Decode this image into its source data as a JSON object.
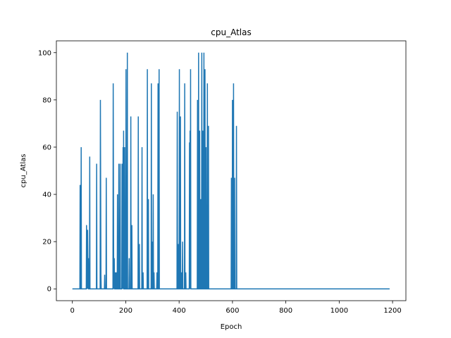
{
  "chart_data": {
    "type": "line",
    "title": "cpu_Atlas",
    "xlabel": "Epoch",
    "ylabel": "cpu_Atlas",
    "xlim": [
      -60,
      1250
    ],
    "ylim": [
      -5,
      105
    ],
    "xticks": [
      0,
      200,
      400,
      600,
      800,
      1000,
      1200
    ],
    "yticks": [
      0,
      20,
      40,
      60,
      80,
      100
    ],
    "grid": false,
    "legend": "none",
    "color": "#1f77b4",
    "series": [
      {
        "values_sparse": [
          [
            0,
            0
          ],
          [
            28,
            0
          ],
          [
            29,
            44
          ],
          [
            30,
            0
          ],
          [
            32,
            0
          ],
          [
            33,
            60
          ],
          [
            34,
            0
          ],
          [
            52,
            0
          ],
          [
            53,
            27
          ],
          [
            55,
            0
          ],
          [
            57,
            25
          ],
          [
            59,
            0
          ],
          [
            60,
            13
          ],
          [
            61,
            0
          ],
          [
            64,
            0
          ],
          [
            65,
            56
          ],
          [
            66,
            0
          ],
          [
            90,
            0
          ],
          [
            91,
            53
          ],
          [
            92,
            0
          ],
          [
            104,
            0
          ],
          [
            105,
            80
          ],
          [
            107,
            6
          ],
          [
            108,
            0
          ],
          [
            120,
            0
          ],
          [
            121,
            6
          ],
          [
            122,
            0
          ],
          [
            126,
            0
          ],
          [
            127,
            47
          ],
          [
            128,
            0
          ],
          [
            152,
            0
          ],
          [
            153,
            87
          ],
          [
            155,
            0
          ],
          [
            157,
            13
          ],
          [
            158,
            0
          ],
          [
            160,
            0
          ],
          [
            161,
            7
          ],
          [
            162,
            0
          ],
          [
            164,
            0
          ],
          [
            165,
            7
          ],
          [
            166,
            0
          ],
          [
            168,
            0
          ],
          [
            169,
            40
          ],
          [
            170,
            0
          ],
          [
            173,
            0
          ],
          [
            174,
            53
          ],
          [
            175,
            0
          ],
          [
            178,
            0
          ],
          [
            179,
            53
          ],
          [
            180,
            0
          ],
          [
            185,
            0
          ],
          [
            186,
            53
          ],
          [
            188,
            0
          ],
          [
            190,
            60
          ],
          [
            191,
            0
          ],
          [
            192,
            67
          ],
          [
            193,
            0
          ],
          [
            195,
            0
          ],
          [
            196,
            60
          ],
          [
            197,
            0
          ],
          [
            200,
            0
          ],
          [
            201,
            93
          ],
          [
            202,
            0
          ],
          [
            205,
            0
          ],
          [
            206,
            100
          ],
          [
            207,
            0
          ],
          [
            212,
            0
          ],
          [
            213,
            13
          ],
          [
            214,
            0
          ],
          [
            218,
            0
          ],
          [
            219,
            73
          ],
          [
            220,
            0
          ],
          [
            222,
            0
          ],
          [
            223,
            27
          ],
          [
            224,
            0
          ],
          [
            246,
            0
          ],
          [
            247,
            73
          ],
          [
            248,
            0
          ],
          [
            250,
            0
          ],
          [
            251,
            19
          ],
          [
            252,
            0
          ],
          [
            260,
            0
          ],
          [
            261,
            60
          ],
          [
            262,
            0
          ],
          [
            264,
            0
          ],
          [
            265,
            7
          ],
          [
            266,
            0
          ],
          [
            280,
            0
          ],
          [
            281,
            93
          ],
          [
            282,
            0
          ],
          [
            284,
            0
          ],
          [
            285,
            38
          ],
          [
            286,
            0
          ],
          [
            295,
            0
          ],
          [
            296,
            87
          ],
          [
            297,
            0
          ],
          [
            298,
            0
          ],
          [
            299,
            20
          ],
          [
            300,
            0
          ],
          [
            302,
            0
          ],
          [
            303,
            40
          ],
          [
            304,
            0
          ],
          [
            305,
            0
          ],
          [
            306,
            7
          ],
          [
            307,
            0
          ],
          [
            316,
            0
          ],
          [
            317,
            7
          ],
          [
            318,
            0
          ],
          [
            320,
            0
          ],
          [
            321,
            87
          ],
          [
            322,
            0
          ],
          [
            324,
            0
          ],
          [
            325,
            93
          ],
          [
            326,
            0
          ],
          [
            392,
            0
          ],
          [
            393,
            75
          ],
          [
            394,
            0
          ],
          [
            396,
            0
          ],
          [
            397,
            19
          ],
          [
            398,
            0
          ],
          [
            400,
            0
          ],
          [
            401,
            93
          ],
          [
            402,
            0
          ],
          [
            404,
            0
          ],
          [
            405,
            73
          ],
          [
            406,
            0
          ],
          [
            408,
            0
          ],
          [
            409,
            7
          ],
          [
            410,
            0
          ],
          [
            412,
            0
          ],
          [
            413,
            20
          ],
          [
            414,
            0
          ],
          [
            420,
            0
          ],
          [
            421,
            87
          ],
          [
            422,
            0
          ],
          [
            424,
            0
          ],
          [
            425,
            7
          ],
          [
            426,
            0
          ],
          [
            438,
            0
          ],
          [
            439,
            62
          ],
          [
            440,
            0
          ],
          [
            441,
            67
          ],
          [
            442,
            0
          ],
          [
            443,
            93
          ],
          [
            444,
            0
          ],
          [
            468,
            0
          ],
          [
            469,
            80
          ],
          [
            470,
            0
          ],
          [
            472,
            0
          ],
          [
            473,
            100
          ],
          [
            474,
            0
          ],
          [
            476,
            0
          ],
          [
            477,
            67
          ],
          [
            478,
            0
          ],
          [
            480,
            0
          ],
          [
            481,
            38
          ],
          [
            482,
            0
          ],
          [
            484,
            0
          ],
          [
            485,
            100
          ],
          [
            486,
            0
          ],
          [
            488,
            0
          ],
          [
            489,
            67
          ],
          [
            490,
            0
          ],
          [
            492,
            0
          ],
          [
            493,
            100
          ],
          [
            494,
            0
          ],
          [
            496,
            0
          ],
          [
            497,
            93
          ],
          [
            498,
            0
          ],
          [
            500,
            0
          ],
          [
            501,
            60
          ],
          [
            502,
            0
          ],
          [
            505,
            0
          ],
          [
            506,
            87
          ],
          [
            507,
            0
          ],
          [
            509,
            0
          ],
          [
            510,
            69
          ],
          [
            511,
            0
          ],
          [
            595,
            0
          ],
          [
            596,
            47
          ],
          [
            597,
            0
          ],
          [
            599,
            0
          ],
          [
            600,
            80
          ],
          [
            601,
            0
          ],
          [
            603,
            0
          ],
          [
            604,
            87
          ],
          [
            605,
            0
          ],
          [
            607,
            0
          ],
          [
            608,
            47
          ],
          [
            609,
            0
          ],
          [
            614,
            0
          ],
          [
            615,
            69
          ],
          [
            616,
            0
          ],
          [
            1189,
            0
          ]
        ]
      }
    ]
  }
}
